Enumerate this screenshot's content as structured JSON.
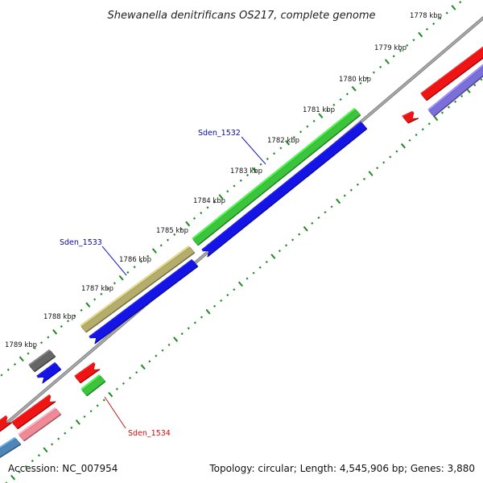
{
  "title": "Shewanella denitrificans OS217, complete genome",
  "footer": {
    "accession": "Accession: NC_007954",
    "summary": "Topology: circular; Length: 4,545,906 bp; Genes: 3,880"
  },
  "scale": {
    "unit": "kbp",
    "ticks": [
      "1778 kbp",
      "1779 kbp",
      "1780 kbp",
      "1781 kbp",
      "1782 kbp",
      "1783 kbp",
      "1784 kbp",
      "1785 kbp",
      "1786 kbp",
      "1787 kbp",
      "1788 kbp",
      "1789 kbp"
    ]
  },
  "gene_labels": [
    {
      "label": "Sden_1532",
      "color": "#0a0a9e"
    },
    {
      "label": "Sden_1533",
      "color": "#0a0a9e"
    },
    {
      "label": "Sden_1534",
      "color": "#c81010"
    }
  ],
  "colors": {
    "backbone": "#8a8a8a",
    "ticks": "#1f8a1f",
    "forward_cds": "#1414e6",
    "reverse_cds": "#f01414",
    "green_feature": "#3cc43c",
    "olive_feature": "#b4ad6c",
    "gray_feature": "#666666",
    "purple_feature": "#7b6fd9",
    "pink_feature": "#f08a96",
    "steel_feature": "#4f86b8"
  }
}
